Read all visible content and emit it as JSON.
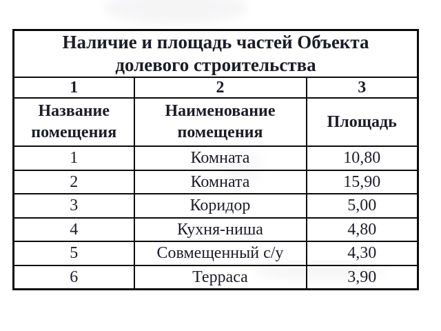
{
  "table": {
    "title": "Наличие и площадь частей Объекта долевого строительства",
    "column_numbers": [
      "1",
      "2",
      "3"
    ],
    "headers": {
      "room_number": "Название помещения",
      "room_name": "Наименование помещения",
      "area": "Площадь"
    },
    "rows": [
      {
        "num": "1",
        "name": "Комната",
        "area": "10,80"
      },
      {
        "num": "2",
        "name": "Комната",
        "area": "15,90"
      },
      {
        "num": "3",
        "name": "Коридор",
        "area": "5,00"
      },
      {
        "num": "4",
        "name": "Кухня-ниша",
        "area": "4,80"
      },
      {
        "num": "5",
        "name": "Совмещенный с/у",
        "area": "4,30"
      },
      {
        "num": "6",
        "name": "Терраса",
        "area": "3,90"
      }
    ]
  },
  "colors": {
    "text": "#1c1c28",
    "border": "#0a0a0a",
    "background": "#ffffff"
  }
}
